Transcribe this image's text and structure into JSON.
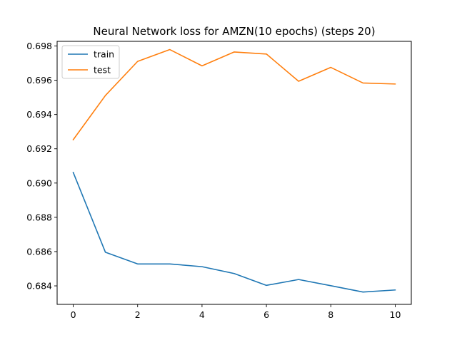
{
  "chart_data": {
    "type": "line",
    "title": "Neural Network loss for AMZN(10 epochs) (steps 20)",
    "xlabel": "",
    "ylabel": "",
    "x": [
      0,
      1,
      2,
      3,
      4,
      5,
      6,
      7,
      8,
      9,
      10
    ],
    "xlim": [
      -0.5,
      10.5
    ],
    "ylim": [
      0.68292,
      0.69827
    ],
    "xticks": [
      0,
      2,
      4,
      6,
      8,
      10
    ],
    "yticks": [
      0.684,
      0.686,
      0.688,
      0.69,
      0.692,
      0.694,
      0.696,
      0.698
    ],
    "grid": false,
    "legend_position": "upper left",
    "series": [
      {
        "name": "train",
        "color": "#1f77b4",
        "values": [
          0.69062,
          0.68596,
          0.68528,
          0.68528,
          0.68512,
          0.68472,
          0.68403,
          0.68437,
          0.68401,
          0.68364,
          0.68376
        ]
      },
      {
        "name": "test",
        "color": "#ff7f0e",
        "values": [
          0.69253,
          0.69511,
          0.6971,
          0.69779,
          0.69684,
          0.69765,
          0.69753,
          0.69594,
          0.69675,
          0.69584,
          0.69578
        ]
      }
    ]
  }
}
